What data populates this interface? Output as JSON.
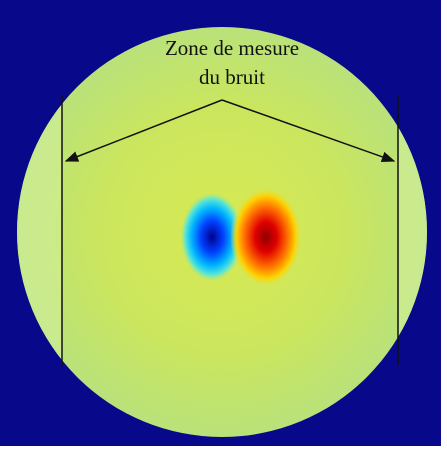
{
  "annotation": {
    "lines": [
      "Zone de mesure",
      "du bruit"
    ]
  }
}
